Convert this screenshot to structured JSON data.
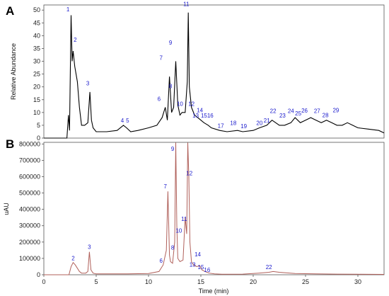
{
  "chart_data": [
    {
      "panel": "A",
      "type": "line",
      "xlabel": "",
      "ylabel": "Relative Abundance",
      "xlim": [
        0,
        32.5
      ],
      "ylim": [
        0,
        52
      ],
      "yticks": [
        0,
        5,
        10,
        15,
        20,
        25,
        30,
        35,
        40,
        45,
        50
      ],
      "y_tick_labels": [
        "0",
        "5",
        "10",
        "15",
        "20",
        "25",
        "30",
        "35",
        "40",
        "45",
        "50"
      ],
      "line_color": "#000000",
      "series": [
        {
          "x": [
            0,
            2.2,
            2.35,
            2.45,
            2.6,
            2.7,
            2.8,
            2.95,
            3.2,
            3.4,
            3.6,
            3.9,
            4.2,
            4.4,
            4.55,
            4.7,
            5,
            6,
            7,
            7.6,
            7.9,
            8.3,
            9,
            10,
            10.8,
            11.3,
            11.6,
            11.8,
            12,
            12.2,
            12.4,
            12.6,
            12.8,
            13,
            13.2,
            13.5,
            13.7,
            13.8,
            13.9,
            14.1,
            14.4,
            14.7,
            15.0,
            15.3,
            15.7,
            16.0,
            16.8,
            17.5,
            18.5,
            19,
            20,
            20.6,
            21.3,
            21.8,
            22.5,
            23,
            23.6,
            24,
            24.5,
            25,
            25.5,
            26,
            26.5,
            27,
            27.5,
            28,
            28.5,
            29,
            29.5,
            30,
            31,
            32,
            32.5
          ],
          "y": [
            0,
            0,
            9,
            3,
            48,
            30,
            34,
            28,
            22,
            12,
            5,
            5,
            6,
            18,
            7,
            4,
            2.5,
            2.5,
            3,
            5,
            4,
            2.5,
            3,
            4,
            5,
            8,
            12,
            7,
            24,
            10,
            12,
            30,
            13,
            9,
            10,
            10,
            22,
            49,
            20,
            12,
            9,
            8,
            7,
            6,
            5,
            4,
            3,
            2.5,
            3,
            2.5,
            3,
            4,
            5,
            7,
            5,
            5,
            6,
            8,
            6,
            7,
            8,
            7,
            6,
            7,
            6,
            5,
            5,
            6,
            5,
            4,
            3.5,
            3,
            2
          ]
        }
      ],
      "peak_labels": [
        {
          "label": "1",
          "x": 2.3,
          "y": 49
        },
        {
          "label": "2",
          "x": 3.0,
          "y": 37
        },
        {
          "label": "3",
          "x": 4.2,
          "y": 20
        },
        {
          "label": "4",
          "x": 7.5,
          "y": 5.6
        },
        {
          "label": "5",
          "x": 8.0,
          "y": 5.6
        },
        {
          "label": "6",
          "x": 11.0,
          "y": 14
        },
        {
          "label": "7",
          "x": 11.2,
          "y": 30
        },
        {
          "label": "8",
          "x": 12.1,
          "y": 19
        },
        {
          "label": "9",
          "x": 12.1,
          "y": 36
        },
        {
          "label": "10",
          "x": 13.0,
          "y": 12
        },
        {
          "label": "11",
          "x": 13.6,
          "y": 51
        },
        {
          "label": "12",
          "x": 14.1,
          "y": 12
        },
        {
          "label": "13",
          "x": 14.5,
          "y": 7.5
        },
        {
          "label": "14",
          "x": 14.9,
          "y": 9.5
        },
        {
          "label": "15",
          "x": 15.3,
          "y": 7.5
        },
        {
          "label": "16",
          "x": 15.9,
          "y": 7.5
        },
        {
          "label": "17",
          "x": 16.9,
          "y": 3.5
        },
        {
          "label": "18",
          "x": 18.1,
          "y": 4.5
        },
        {
          "label": "19",
          "x": 19.1,
          "y": 3.3
        },
        {
          "label": "20",
          "x": 20.6,
          "y": 4.6
        },
        {
          "label": "21",
          "x": 21.3,
          "y": 5.6
        },
        {
          "label": "22",
          "x": 21.9,
          "y": 9.2
        },
        {
          "label": "23",
          "x": 22.8,
          "y": 7.5
        },
        {
          "label": "24",
          "x": 23.6,
          "y": 9.2
        },
        {
          "label": "25",
          "x": 24.3,
          "y": 8.3
        },
        {
          "label": "26",
          "x": 24.9,
          "y": 9.4
        },
        {
          "label": "27",
          "x": 26.1,
          "y": 9.2
        },
        {
          "label": "28",
          "x": 26.9,
          "y": 7.6
        },
        {
          "label": "29",
          "x": 27.9,
          "y": 9.6
        }
      ]
    },
    {
      "panel": "B",
      "type": "line",
      "xlabel": "Time (min)",
      "ylabel": "uAU",
      "xlim": [
        0,
        32.5
      ],
      "ylim": [
        0,
        810000
      ],
      "xticks": [
        0,
        5,
        10,
        15,
        20,
        25,
        30
      ],
      "x_tick_labels": [
        "0",
        "5",
        "10",
        "15",
        "20",
        "25",
        "30"
      ],
      "yticks": [
        0,
        100000,
        200000,
        300000,
        400000,
        500000,
        600000,
        700000,
        800000
      ],
      "y_tick_labels": [
        "0",
        "100000",
        "200000",
        "300000",
        "400000",
        "500000",
        "600000",
        "700000",
        "800000"
      ],
      "line_color": "#b0605a",
      "series": [
        {
          "x": [
            0,
            2.4,
            2.6,
            2.8,
            3.0,
            3.2,
            3.4,
            3.6,
            4.0,
            4.2,
            4.35,
            4.5,
            4.7,
            5,
            6,
            8,
            10,
            11,
            11.4,
            11.7,
            11.85,
            12.0,
            12.1,
            12.3,
            12.5,
            12.6,
            12.7,
            12.8,
            13.0,
            13.3,
            13.5,
            13.65,
            13.75,
            13.85,
            13.95,
            14.1,
            14.3,
            14.6,
            14.9,
            15.1,
            15.4,
            15.8,
            16.3,
            17,
            19,
            20.5,
            21.5,
            21.9,
            22.5,
            24,
            26,
            28,
            30,
            32.5
          ],
          "y": [
            0,
            0,
            50000,
            75000,
            60000,
            40000,
            20000,
            10000,
            10000,
            20000,
            140000,
            30000,
            10000,
            5000,
            5000,
            5000,
            8000,
            20000,
            60000,
            150000,
            510000,
            120000,
            80000,
            70000,
            200000,
            808000,
            300000,
            100000,
            80000,
            90000,
            350000,
            250000,
            808000,
            600000,
            200000,
            80000,
            60000,
            50000,
            55000,
            30000,
            20000,
            10000,
            5000,
            3000,
            4000,
            10000,
            15000,
            20000,
            15000,
            8000,
            5000,
            4000,
            3000,
            2000
          ]
        }
      ],
      "peak_labels": [
        {
          "label": "2",
          "x": 2.8,
          "y": 80000
        },
        {
          "label": "3",
          "x": 4.35,
          "y": 150000
        },
        {
          "label": "6",
          "x": 11.2,
          "y": 65000
        },
        {
          "label": "7",
          "x": 11.6,
          "y": 520000
        },
        {
          "label": "8",
          "x": 12.3,
          "y": 145000
        },
        {
          "label": "9",
          "x": 12.3,
          "y": 750000
        },
        {
          "label": "10",
          "x": 12.9,
          "y": 250000
        },
        {
          "label": "11",
          "x": 13.4,
          "y": 320000
        },
        {
          "label": "12",
          "x": 13.9,
          "y": 600000
        },
        {
          "label": "13",
          "x": 14.2,
          "y": 42000
        },
        {
          "label": "14",
          "x": 14.7,
          "y": 105000
        },
        {
          "label": "15",
          "x": 15.0,
          "y": 25000
        },
        {
          "label": "16",
          "x": 15.6,
          "y": 8000
        },
        {
          "label": "22",
          "x": 21.5,
          "y": 26000
        }
      ]
    }
  ]
}
